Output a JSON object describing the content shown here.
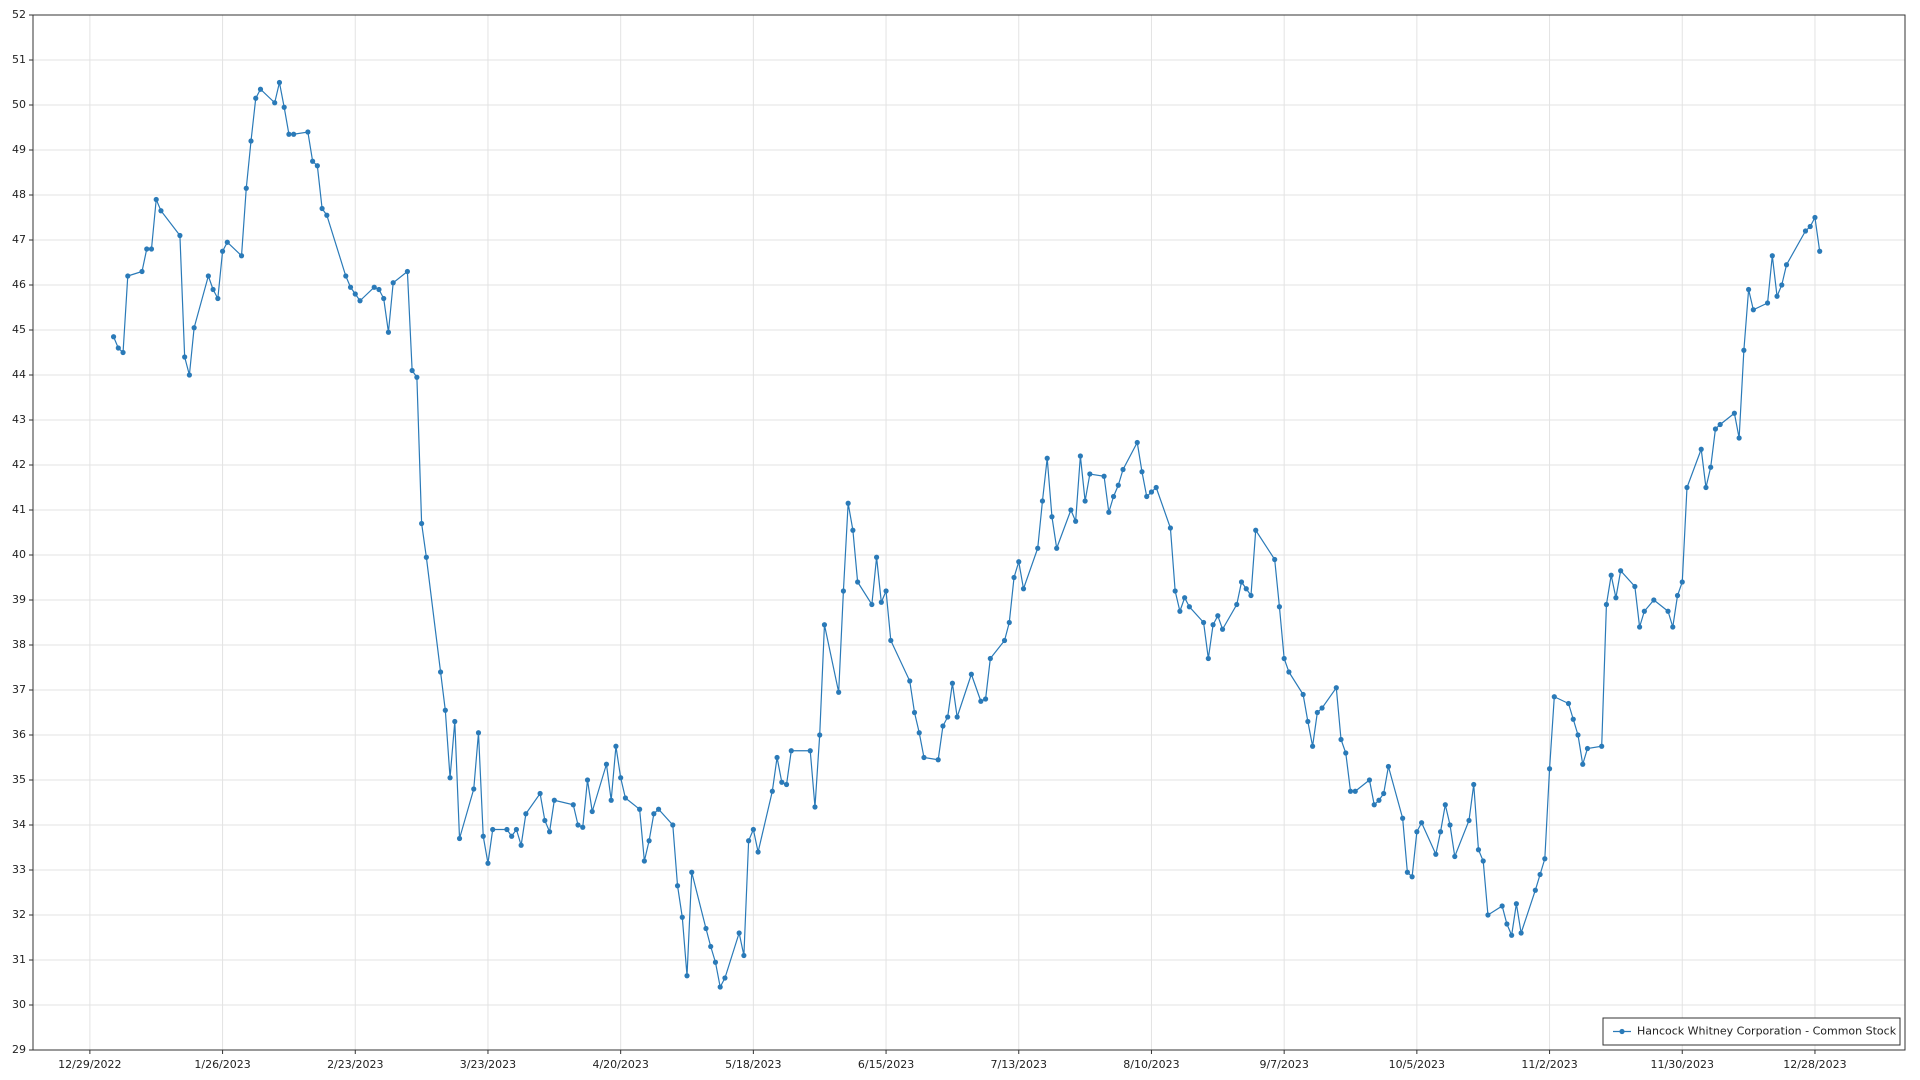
{
  "chart_data": {
    "type": "line",
    "x": [
      "1/3/2023",
      "1/4/2023",
      "1/5/2023",
      "1/6/2023",
      "1/9/2023",
      "1/10/2023",
      "1/11/2023",
      "1/12/2023",
      "1/13/2023",
      "1/17/2023",
      "1/18/2023",
      "1/19/2023",
      "1/20/2023",
      "1/23/2023",
      "1/24/2023",
      "1/25/2023",
      "1/26/2023",
      "1/27/2023",
      "1/30/2023",
      "1/31/2023",
      "2/1/2023",
      "2/2/2023",
      "2/3/2023",
      "2/6/2023",
      "2/7/2023",
      "2/8/2023",
      "2/9/2023",
      "2/10/2023",
      "2/13/2023",
      "2/14/2023",
      "2/15/2023",
      "2/16/2023",
      "2/17/2023",
      "2/21/2023",
      "2/22/2023",
      "2/23/2023",
      "2/24/2023",
      "2/27/2023",
      "2/28/2023",
      "3/1/2023",
      "3/2/2023",
      "3/3/2023",
      "3/6/2023",
      "3/7/2023",
      "3/8/2023",
      "3/9/2023",
      "3/10/2023",
      "3/13/2023",
      "3/14/2023",
      "3/15/2023",
      "3/16/2023",
      "3/17/2023",
      "3/20/2023",
      "3/21/2023",
      "3/22/2023",
      "3/23/2023",
      "3/24/2023",
      "3/27/2023",
      "3/28/2023",
      "3/29/2023",
      "3/30/2023",
      "3/31/2023",
      "4/3/2023",
      "4/4/2023",
      "4/5/2023",
      "4/6/2023",
      "4/10/2023",
      "4/11/2023",
      "4/12/2023",
      "4/13/2023",
      "4/14/2023",
      "4/17/2023",
      "4/18/2023",
      "4/19/2023",
      "4/20/2023",
      "4/21/2023",
      "4/24/2023",
      "4/25/2023",
      "4/26/2023",
      "4/27/2023",
      "4/28/2023",
      "5/1/2023",
      "5/2/2023",
      "5/3/2023",
      "5/4/2023",
      "5/5/2023",
      "5/8/2023",
      "5/9/2023",
      "5/10/2023",
      "5/11/2023",
      "5/12/2023",
      "5/15/2023",
      "5/16/2023",
      "5/17/2023",
      "5/18/2023",
      "5/19/2023",
      "5/22/2023",
      "5/23/2023",
      "5/24/2023",
      "5/25/2023",
      "5/26/2023",
      "5/30/2023",
      "5/31/2023",
      "6/1/2023",
      "6/2/2023",
      "6/5/2023",
      "6/6/2023",
      "6/7/2023",
      "6/8/2023",
      "6/9/2023",
      "6/12/2023",
      "6/13/2023",
      "6/14/2023",
      "6/15/2023",
      "6/16/2023",
      "6/20/2023",
      "6/21/2023",
      "6/22/2023",
      "6/23/2023",
      "6/26/2023",
      "6/27/2023",
      "6/28/2023",
      "6/29/2023",
      "6/30/2023",
      "7/3/2023",
      "7/5/2023",
      "7/6/2023",
      "7/7/2023",
      "7/10/2023",
      "7/11/2023",
      "7/12/2023",
      "7/13/2023",
      "7/14/2023",
      "7/17/2023",
      "7/18/2023",
      "7/19/2023",
      "7/20/2023",
      "7/21/2023",
      "7/24/2023",
      "7/25/2023",
      "7/26/2023",
      "7/27/2023",
      "7/28/2023",
      "7/31/2023",
      "8/1/2023",
      "8/2/2023",
      "8/3/2023",
      "8/4/2023",
      "8/7/2023",
      "8/8/2023",
      "8/9/2023",
      "8/10/2023",
      "8/11/2023",
      "8/14/2023",
      "8/15/2023",
      "8/16/2023",
      "8/17/2023",
      "8/18/2023",
      "8/21/2023",
      "8/22/2023",
      "8/23/2023",
      "8/24/2023",
      "8/25/2023",
      "8/28/2023",
      "8/29/2023",
      "8/30/2023",
      "8/31/2023",
      "9/1/2023",
      "9/5/2023",
      "9/6/2023",
      "9/7/2023",
      "9/8/2023",
      "9/11/2023",
      "9/12/2023",
      "9/13/2023",
      "9/14/2023",
      "9/15/2023",
      "9/18/2023",
      "9/19/2023",
      "9/20/2023",
      "9/21/2023",
      "9/22/2023",
      "9/25/2023",
      "9/26/2023",
      "9/27/2023",
      "9/28/2023",
      "9/29/2023",
      "10/2/2023",
      "10/3/2023",
      "10/4/2023",
      "10/5/2023",
      "10/6/2023",
      "10/9/2023",
      "10/10/2023",
      "10/11/2023",
      "10/12/2023",
      "10/13/2023",
      "10/16/2023",
      "10/17/2023",
      "10/18/2023",
      "10/19/2023",
      "10/20/2023",
      "10/23/2023",
      "10/24/2023",
      "10/25/2023",
      "10/26/2023",
      "10/27/2023",
      "10/30/2023",
      "10/31/2023",
      "11/1/2023",
      "11/2/2023",
      "11/3/2023",
      "11/6/2023",
      "11/7/2023",
      "11/8/2023",
      "11/9/2023",
      "11/10/2023",
      "11/13/2023",
      "11/14/2023",
      "11/15/2023",
      "11/16/2023",
      "11/17/2023",
      "11/20/2023",
      "11/21/2023",
      "11/22/2023",
      "11/24/2023",
      "11/27/2023",
      "11/28/2023",
      "11/29/2023",
      "11/30/2023",
      "12/1/2023",
      "12/4/2023",
      "12/5/2023",
      "12/6/2023",
      "12/7/2023",
      "12/8/2023",
      "12/11/2023",
      "12/12/2023",
      "12/13/2023",
      "12/14/2023",
      "12/15/2023",
      "12/18/2023",
      "12/19/2023",
      "12/20/2023",
      "12/21/2023",
      "12/22/2023",
      "12/26/2023",
      "12/27/2023",
      "12/28/2023",
      "12/29/2023"
    ],
    "series": [
      {
        "name": "Hancock Whitney Corporation - Common Stock",
        "color": "#2a7ab8",
        "values": [
          44.85,
          44.6,
          44.5,
          46.2,
          46.3,
          46.8,
          46.8,
          47.9,
          47.65,
          47.1,
          44.4,
          44.0,
          45.05,
          46.2,
          45.9,
          45.7,
          46.75,
          46.95,
          46.65,
          48.15,
          49.2,
          50.15,
          50.35,
          50.05,
          50.5,
          49.95,
          49.35,
          49.35,
          49.4,
          48.75,
          48.65,
          47.7,
          47.55,
          46.2,
          45.95,
          45.8,
          45.65,
          45.95,
          45.9,
          45.7,
          44.95,
          46.05,
          46.3,
          44.1,
          43.95,
          40.7,
          39.95,
          37.4,
          36.55,
          35.05,
          36.3,
          33.7,
          34.8,
          36.05,
          33.75,
          33.15,
          33.9,
          33.9,
          33.75,
          33.9,
          33.55,
          34.25,
          34.7,
          34.1,
          33.85,
          34.55,
          34.45,
          34.0,
          33.95,
          35.0,
          34.3,
          35.35,
          34.55,
          35.75,
          35.05,
          34.6,
          34.35,
          33.2,
          33.65,
          34.25,
          34.35,
          34.0,
          32.65,
          31.95,
          30.65,
          32.95,
          31.7,
          31.3,
          30.95,
          30.4,
          30.6,
          31.6,
          31.1,
          33.65,
          33.9,
          33.4,
          34.75,
          35.5,
          34.95,
          34.9,
          35.65,
          35.65,
          34.4,
          36.0,
          38.45,
          36.95,
          39.2,
          41.15,
          40.55,
          39.4,
          38.9,
          39.95,
          38.95,
          39.2,
          38.1,
          37.2,
          36.5,
          36.05,
          35.5,
          35.45,
          36.2,
          36.4,
          37.15,
          36.4,
          37.35,
          36.75,
          36.8,
          37.7,
          38.1,
          38.5,
          39.5,
          39.85,
          39.25,
          40.15,
          41.2,
          42.15,
          40.85,
          40.15,
          41.0,
          40.75,
          42.2,
          41.2,
          41.8,
          41.75,
          40.95,
          41.3,
          41.55,
          41.9,
          42.5,
          41.85,
          41.3,
          41.4,
          41.5,
          40.6,
          39.2,
          38.75,
          39.05,
          38.85,
          38.5,
          37.7,
          38.45,
          38.65,
          38.35,
          38.9,
          39.4,
          39.25,
          39.1,
          40.55,
          39.9,
          38.85,
          37.7,
          37.4,
          36.9,
          36.3,
          35.75,
          36.5,
          36.6,
          37.05,
          35.9,
          35.6,
          34.75,
          34.75,
          35.0,
          34.45,
          34.55,
          34.7,
          35.3,
          34.15,
          32.95,
          32.85,
          33.85,
          34.05,
          33.35,
          33.85,
          34.45,
          34.0,
          33.3,
          34.1,
          34.9,
          33.45,
          33.2,
          32.0,
          32.2,
          31.8,
          31.55,
          32.25,
          31.6,
          32.55,
          32.9,
          33.25,
          35.25,
          36.85,
          36.7,
          36.35,
          36.0,
          35.35,
          35.7,
          35.75,
          38.9,
          39.55,
          39.05,
          39.65,
          39.3,
          38.4,
          38.75,
          39.0,
          38.75,
          38.4,
          39.1,
          39.4,
          41.5,
          42.35,
          41.5,
          41.95,
          42.8,
          42.9,
          43.15,
          42.6,
          44.55,
          45.9,
          45.45,
          45.6,
          46.65,
          45.75,
          46.0,
          46.45,
          47.2,
          47.3,
          47.5,
          46.75
        ]
      }
    ],
    "xlim": [
      "12/17/2022",
      "1/16/2024"
    ],
    "xticks": [
      "12/29/2022",
      "1/26/2023",
      "2/23/2023",
      "3/23/2023",
      "4/20/2023",
      "5/18/2023",
      "6/15/2023",
      "7/13/2023",
      "8/10/2023",
      "9/7/2023",
      "10/5/2023",
      "11/2/2023",
      "11/30/2023",
      "12/28/2023"
    ],
    "ylim": [
      29,
      52
    ],
    "yticks": [
      29,
      30,
      31,
      32,
      33,
      34,
      35,
      36,
      37,
      38,
      39,
      40,
      41,
      42,
      43,
      44,
      45,
      46,
      47,
      48,
      49,
      50,
      51,
      52
    ],
    "grid": true,
    "legend": "lower right",
    "markers": true
  }
}
